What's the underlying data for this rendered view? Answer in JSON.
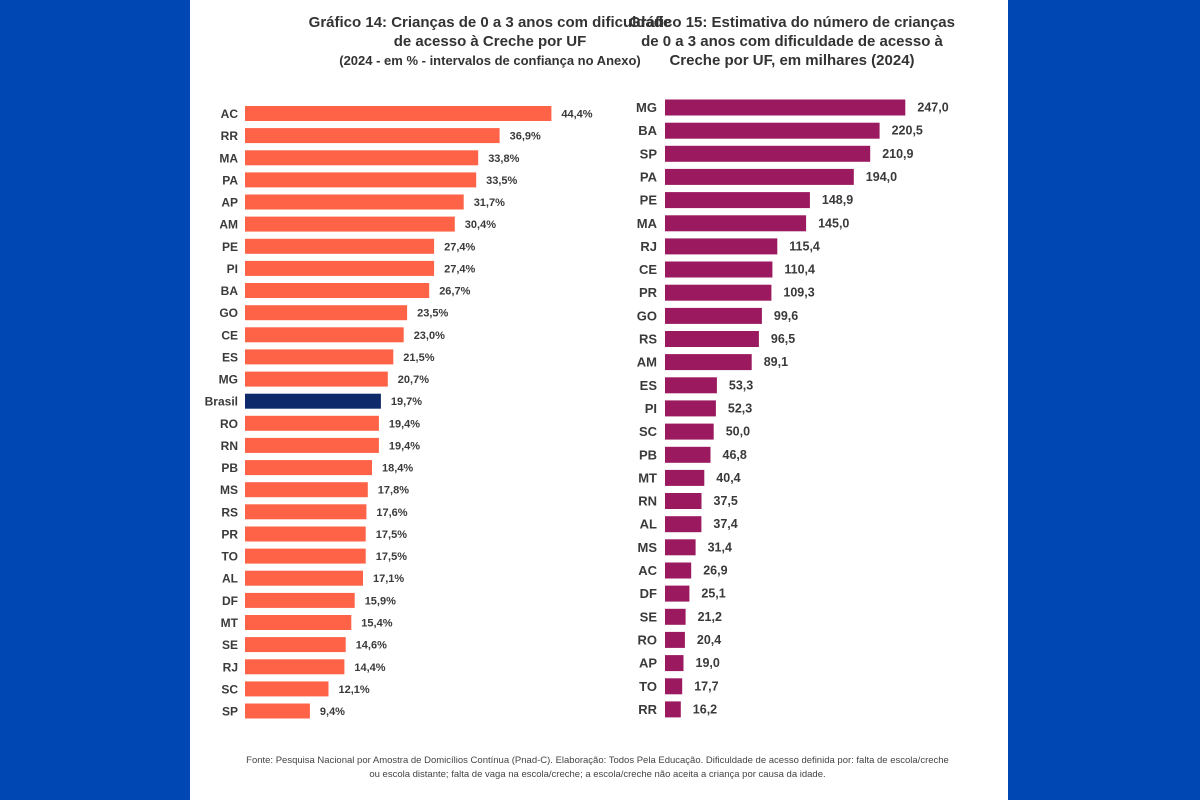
{
  "colors": {
    "background": "#0047b3",
    "panel": "#ffffff",
    "chart14_bar": "#ff6347",
    "chart14_highlight": "#0e2a6b",
    "chart15_bar": "#9b1a5f"
  },
  "chart14_title": {
    "line1": "Gráfico 14: Crianças de 0 a 3 anos com dificuldade",
    "line2": "de acesso à Creche por UF",
    "line3": "(2024 - em % - intervalos de confiança no Anexo)"
  },
  "chart15_title": {
    "line1": "Gráfico 15: Estimativa do número de crianças",
    "line2": "de 0 a 3 anos com dificuldade de acesso à",
    "line3": "Creche por UF, em milhares (2024)"
  },
  "footnote": {
    "line1": "Fonte: Pesquisa Nacional por Amostra de Domicílios Contínua (Pnad-C). Elaboração: Todos Pela Educação. Dificuldade de acesso definida por: falta de escola/creche",
    "line2": "ou escola distante; falta de vaga na escola/creche; a escola/creche não aceita a criança por causa da idade."
  },
  "chart_data": [
    {
      "type": "bar",
      "orientation": "horizontal",
      "title": "Gráfico 14: Crianças de 0 a 3 anos com dificuldade de acesso à Creche por UF",
      "subtitle": "(2024 - em % - intervalos de confiança no Anexo)",
      "categories": [
        "AC",
        "RR",
        "MA",
        "PA",
        "AP",
        "AM",
        "PE",
        "PI",
        "BA",
        "GO",
        "CE",
        "ES",
        "MG",
        "Brasil",
        "RO",
        "RN",
        "PB",
        "MS",
        "RS",
        "PR",
        "TO",
        "AL",
        "DF",
        "MT",
        "SE",
        "RJ",
        "SC",
        "SP"
      ],
      "values": [
        44.4,
        36.9,
        33.8,
        33.5,
        31.7,
        30.4,
        27.4,
        27.4,
        26.7,
        23.5,
        23.0,
        21.5,
        20.7,
        19.7,
        19.4,
        19.4,
        18.4,
        17.8,
        17.6,
        17.5,
        17.5,
        17.1,
        15.9,
        15.4,
        14.6,
        14.4,
        12.1,
        9.4
      ],
      "labels": [
        "44,4%",
        "36,9%",
        "33,8%",
        "33,5%",
        "31,7%",
        "30,4%",
        "27,4%",
        "27,4%",
        "26,7%",
        "23,5%",
        "23,0%",
        "21,5%",
        "20,7%",
        "19,7%",
        "19,4%",
        "19,4%",
        "18,4%",
        "17,8%",
        "17,6%",
        "17,5%",
        "17,5%",
        "17,1%",
        "15,9%",
        "15,4%",
        "14,6%",
        "14,4%",
        "12,1%",
        "9,4%"
      ],
      "highlight": "Brasil",
      "xlim": [
        0,
        50
      ],
      "grid": false,
      "legend": "none"
    },
    {
      "type": "bar",
      "orientation": "horizontal",
      "title": "Gráfico 15: Estimativa do número de crianças de 0 a 3 anos com dificuldade de acesso à Creche por UF, em milhares (2024)",
      "categories": [
        "MG",
        "BA",
        "SP",
        "PA",
        "PE",
        "MA",
        "RJ",
        "CE",
        "PR",
        "GO",
        "RS",
        "AM",
        "ES",
        "PI",
        "SC",
        "PB",
        "MT",
        "RN",
        "AL",
        "MS",
        "AC",
        "DF",
        "SE",
        "RO",
        "AP",
        "TO",
        "RR"
      ],
      "values": [
        247.0,
        220.5,
        210.9,
        194.0,
        148.9,
        145.0,
        115.4,
        110.4,
        109.3,
        99.6,
        96.5,
        89.1,
        53.3,
        52.3,
        50.0,
        46.8,
        40.4,
        37.5,
        37.4,
        31.4,
        26.9,
        25.1,
        21.2,
        20.4,
        19.0,
        17.7,
        16.2
      ],
      "labels": [
        "247,0",
        "220,5",
        "210,9",
        "194,0",
        "148,9",
        "145,0",
        "115,4",
        "110,4",
        "109,3",
        "99,6",
        "96,5",
        "89,1",
        "53,3",
        "52,3",
        "50,0",
        "46,8",
        "40,4",
        "37,5",
        "37,4",
        "31,4",
        "26,9",
        "25,1",
        "21,2",
        "20,4",
        "19,0",
        "17,7",
        "16,2"
      ],
      "xlim": [
        0,
        260
      ],
      "grid": false,
      "legend": "none"
    }
  ]
}
